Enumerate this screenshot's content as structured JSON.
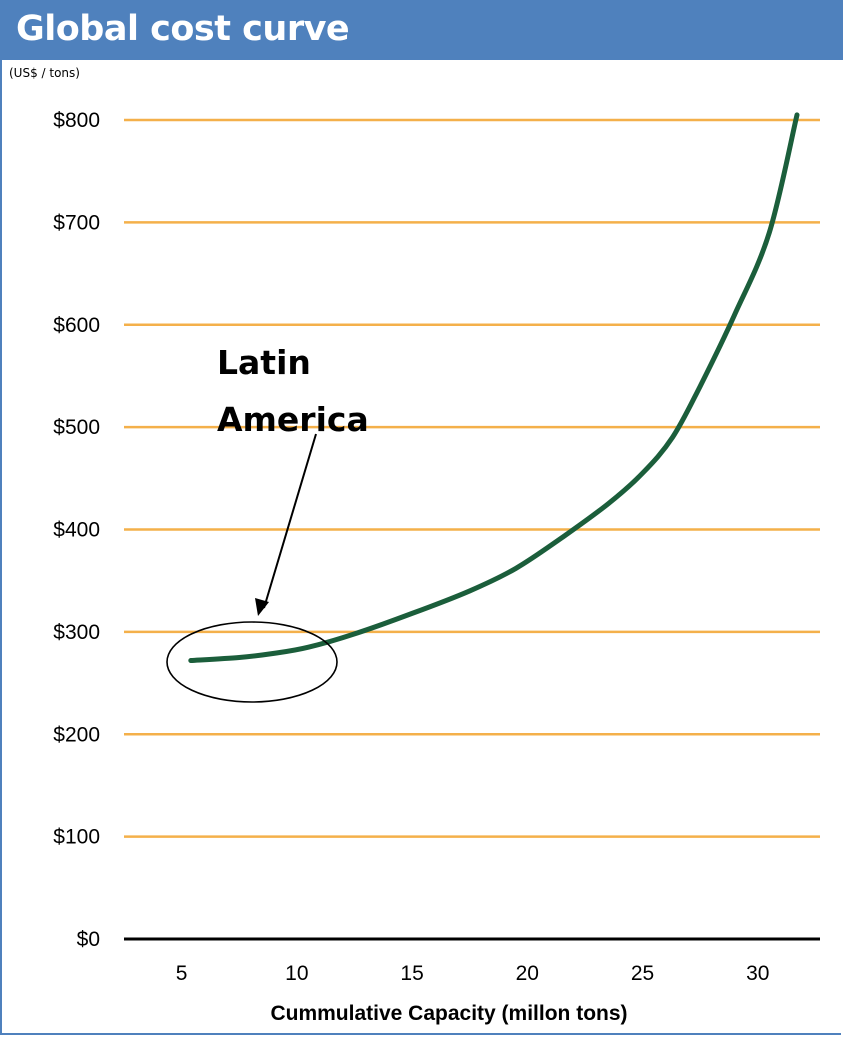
{
  "header": {
    "title": "Global cost curve",
    "unit_label": "(US$ / tons)"
  },
  "colors": {
    "title_bar": "#4f81bd",
    "gridline": "#f4b04a",
    "curve": "#1b5e3b",
    "axis": "#000000"
  },
  "chart_data": {
    "type": "line",
    "title": "Global cost curve",
    "xlabel": "Cummulative Capacity (millon tons)",
    "ylabel": "(US$ / tons)",
    "xlim": [
      2.5,
      32.7
    ],
    "ylim": [
      0,
      800
    ],
    "x_ticks": [
      5,
      10,
      15,
      20,
      25,
      30
    ],
    "x_tick_labels": [
      "5",
      "10",
      "15",
      "20",
      "25",
      "30"
    ],
    "y_ticks": [
      0,
      100,
      200,
      300,
      400,
      500,
      600,
      700,
      800
    ],
    "y_tick_labels": [
      "$0",
      "$100",
      "$200",
      "$300",
      "$400",
      "$500",
      "$600",
      "$700",
      "$800"
    ],
    "grid": true,
    "legend": "none",
    "series": [
      {
        "x": [
          5.4,
          7.5,
          9.0,
          10.5,
          12.5,
          15.0,
          17.5,
          19.5,
          21.5,
          23.5,
          25.0,
          26.3,
          27.5,
          29.0,
          30.5,
          31.7
        ],
        "values": [
          272,
          275,
          279,
          285,
          298,
          318,
          340,
          362,
          392,
          425,
          455,
          490,
          540,
          610,
          690,
          805
        ]
      }
    ],
    "annotations": [
      {
        "text_lines": [
          "Latin",
          "America"
        ],
        "target": "curve start (x 5.4–12, y ≈ 272–290)",
        "shape": "ellipse + arrow"
      }
    ]
  }
}
